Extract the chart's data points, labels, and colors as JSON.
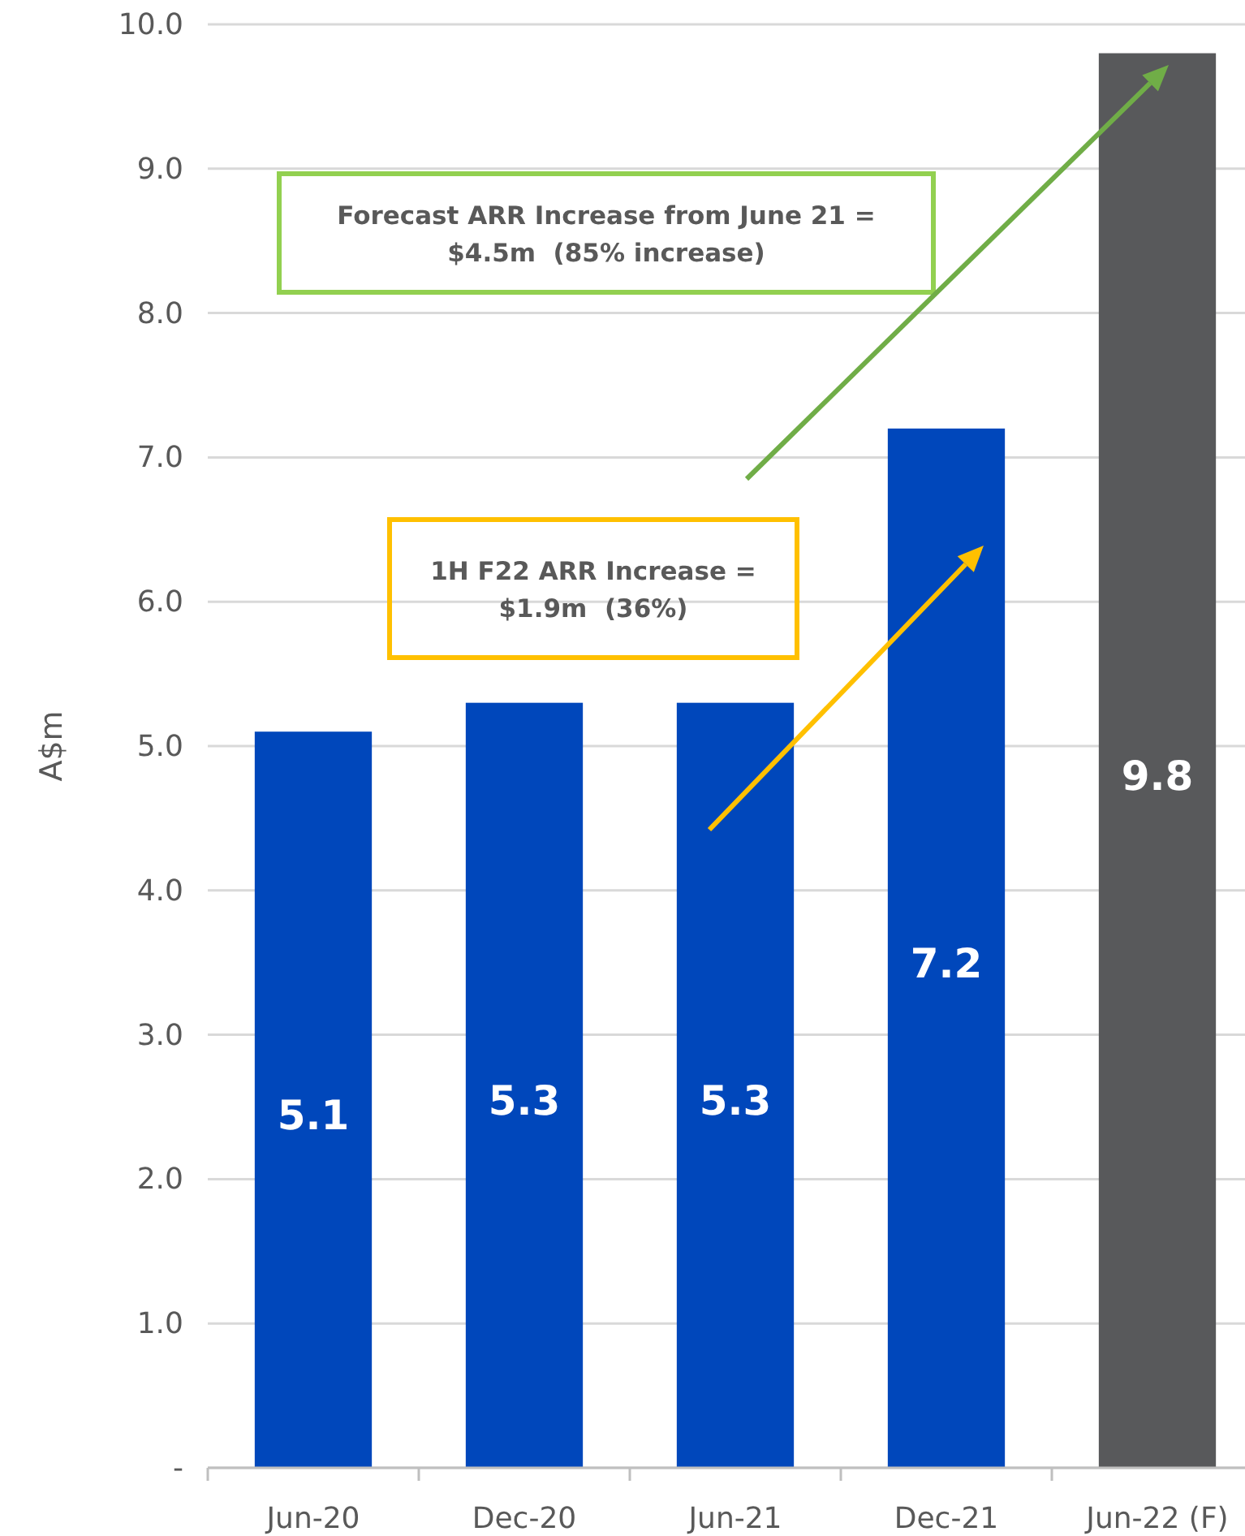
{
  "chart_data": {
    "type": "bar",
    "ylabel": "A$m",
    "categories": [
      "Jun-20",
      "Dec-20",
      "Jun-21",
      "Dec-21",
      "Jun-22 (F)"
    ],
    "values": [
      5.1,
      5.3,
      5.3,
      7.2,
      9.8
    ],
    "colors": [
      "#0047bb",
      "#0047bb",
      "#0047bb",
      "#0047bb",
      "#58595b"
    ],
    "ylim": [
      0,
      10
    ],
    "yticks": [
      {
        "value": 0,
        "label": "-"
      },
      {
        "value": 1,
        "label": "1.0"
      },
      {
        "value": 2,
        "label": "2.0"
      },
      {
        "value": 3,
        "label": "3.0"
      },
      {
        "value": 4,
        "label": "4.0"
      },
      {
        "value": 5,
        "label": "5.0"
      },
      {
        "value": 6,
        "label": "6.0"
      },
      {
        "value": 7,
        "label": "7.0"
      },
      {
        "value": 8,
        "label": "8.0"
      },
      {
        "value": 9,
        "label": "9.0"
      },
      {
        "value": 10,
        "label": "10.0"
      }
    ],
    "grid": "y",
    "data_labels": true,
    "annotations": [
      "Forecast ARR Increase from June 21 =\n$4.5m  (85% increase)",
      "1H F22 ARR Increase =\n$1.9m  (36%)"
    ]
  }
}
